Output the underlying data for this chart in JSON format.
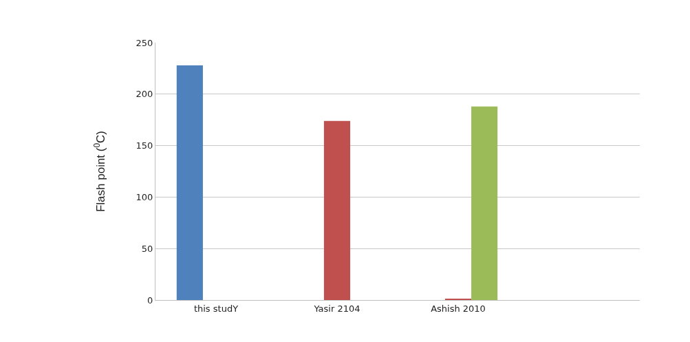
{
  "chart_data": {
    "type": "bar",
    "ylabel": "Flash point ($^{0}$C)",
    "categories": [
      "this studY",
      "Yasir 2104",
      "Ashish 2010",
      null
    ],
    "series": [
      {
        "color": "#4f81bd",
        "values": [
          228,
          null,
          null,
          null
        ]
      },
      {
        "color": "#c0504d",
        "values": [
          null,
          174,
          1,
          null
        ]
      },
      {
        "color": "#9bbb59",
        "values": [
          null,
          null,
          188,
          null
        ]
      }
    ],
    "ylim": [
      0,
      250
    ],
    "yticks": [
      0,
      50,
      100,
      150,
      200,
      250
    ],
    "grid": "y"
  }
}
